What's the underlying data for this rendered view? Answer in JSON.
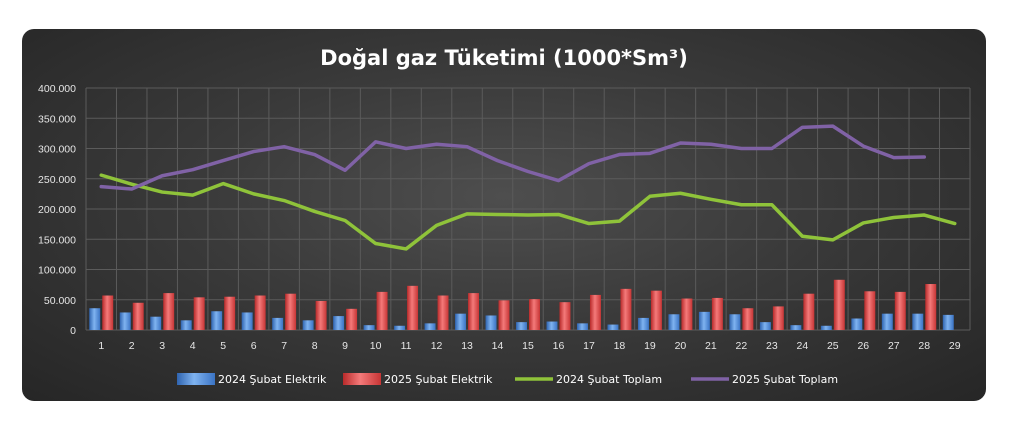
{
  "chart_data": {
    "type": "bar",
    "title": "Doğal gaz Tüketimi (1000*Sm³)",
    "xlabel": "",
    "ylabel": "",
    "ylim": [
      0,
      400000
    ],
    "y_ticks": [
      0,
      50000,
      100000,
      150000,
      200000,
      250000,
      300000,
      350000,
      400000
    ],
    "y_tick_labels": [
      "0",
      "50.000",
      "100.000",
      "150.000",
      "200.000",
      "250.000",
      "300.000",
      "350.000",
      "400.000"
    ],
    "categories": [
      "1",
      "2",
      "3",
      "4",
      "5",
      "6",
      "7",
      "8",
      "9",
      "10",
      "11",
      "12",
      "13",
      "14",
      "15",
      "16",
      "17",
      "18",
      "19",
      "20",
      "21",
      "22",
      "23",
      "24",
      "25",
      "26",
      "27",
      "28",
      "29"
    ],
    "grid": true,
    "legend_position": "bottom",
    "series": [
      {
        "name": "2024 Şubat Elektrik",
        "kind": "bar",
        "color": "#4f8fdb",
        "values": [
          36000,
          29000,
          22000,
          16000,
          31000,
          29000,
          20000,
          16000,
          23000,
          8000,
          7000,
          11000,
          27000,
          24000,
          13000,
          14000,
          11000,
          9000,
          20000,
          26000,
          30000,
          26000,
          13000,
          8000,
          7000,
          19000,
          27000,
          27000,
          25000
        ]
      },
      {
        "name": "2025 Şubat Elektrik",
        "kind": "bar",
        "color": "#e84848",
        "values": [
          57000,
          45000,
          61000,
          54000,
          55000,
          57000,
          60000,
          48000,
          35000,
          63000,
          73000,
          57000,
          61000,
          49000,
          51000,
          46000,
          58000,
          68000,
          65000,
          52000,
          53000,
          36000,
          39000,
          60000,
          83000,
          64000,
          63000,
          76000,
          null
        ]
      },
      {
        "name": "2024 Şubat Toplam",
        "kind": "line",
        "color": "#8fc33a",
        "values": [
          256000,
          241000,
          228000,
          223000,
          242000,
          225000,
          214000,
          196000,
          181000,
          143000,
          134000,
          173000,
          192000,
          191000,
          190000,
          191000,
          176000,
          180000,
          221000,
          226000,
          216000,
          207000,
          207000,
          155000,
          149000,
          177000,
          186000,
          190000,
          176000
        ]
      },
      {
        "name": "2025 Şubat Toplam",
        "kind": "line",
        "color": "#8062a6",
        "values": [
          237000,
          233000,
          255000,
          265000,
          280000,
          295000,
          303000,
          290000,
          264000,
          311000,
          300000,
          307000,
          303000,
          280000,
          262000,
          247000,
          275000,
          290000,
          292000,
          309000,
          307000,
          300000,
          300000,
          335000,
          337000,
          304000,
          285000,
          286000,
          null
        ]
      }
    ]
  }
}
